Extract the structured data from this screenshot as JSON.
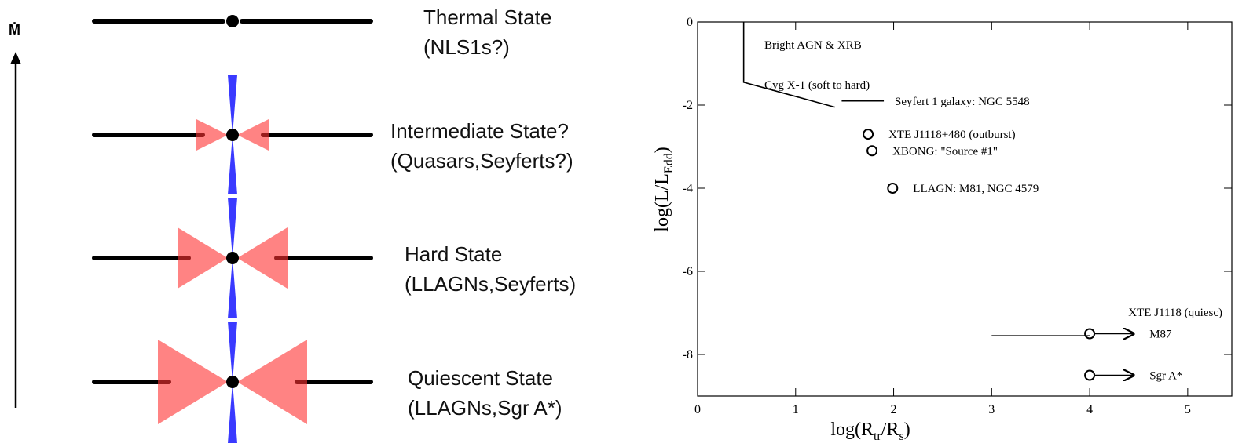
{
  "diagram": {
    "axis_label": "Ṁ",
    "states": [
      {
        "name": "Thermal State",
        "examples": "(NLS1s?)"
      },
      {
        "name": "Intermediate State?",
        "examples": "(Quasars,Seyferts?)"
      },
      {
        "name": "Hard State",
        "examples": "(LLAGNs,Seyferts)"
      },
      {
        "name": "Quiescent State",
        "examples": "(LLAGNs,Sgr A*)"
      }
    ]
  },
  "chart_data": {
    "type": "scatter",
    "xlabel": [
      "log(R",
      "tr",
      "/R",
      "s",
      ")"
    ],
    "ylabel": [
      "log(L/L",
      "Edd",
      ")"
    ],
    "xlim": [
      0,
      5.45
    ],
    "ylim": [
      -9,
      0
    ],
    "xticks": [
      0,
      1,
      2,
      3,
      4,
      5
    ],
    "yticks": [
      0,
      -2,
      -4,
      -6,
      -8
    ],
    "annotations": [
      "Bright AGN & XRB"
    ],
    "lines": [
      {
        "label": "Cyg X-1 (soft to hard)",
        "x": [
          0.47,
          0.47,
          1.4
        ],
        "y": [
          0,
          -1.45,
          -2.05
        ]
      },
      {
        "label": "Seyfert 1 galaxy: NGC 5548",
        "x": [
          1.47,
          1.9
        ],
        "y": [
          -1.9,
          -1.9
        ]
      },
      {
        "label": "XTE J1118 (quiesc)",
        "x": [
          3,
          4
        ],
        "y": [
          -7.55,
          -7.55
        ]
      }
    ],
    "points": [
      {
        "label": "XTE J1118+480 (outburst)",
        "x": 1.74,
        "y": -2.7
      },
      {
        "label": "XBONG: \"Source #1\"",
        "x": 1.78,
        "y": -3.1
      },
      {
        "label": "LLAGN: M81, NGC 4579",
        "x": 1.99,
        "y": -4.0
      },
      {
        "label": "M87",
        "x": 4,
        "y": -7.5,
        "arrow_to": 4.45
      },
      {
        "label": "Sgr A*",
        "x": 4,
        "y": -8.5,
        "arrow_to": 4.45
      }
    ]
  }
}
